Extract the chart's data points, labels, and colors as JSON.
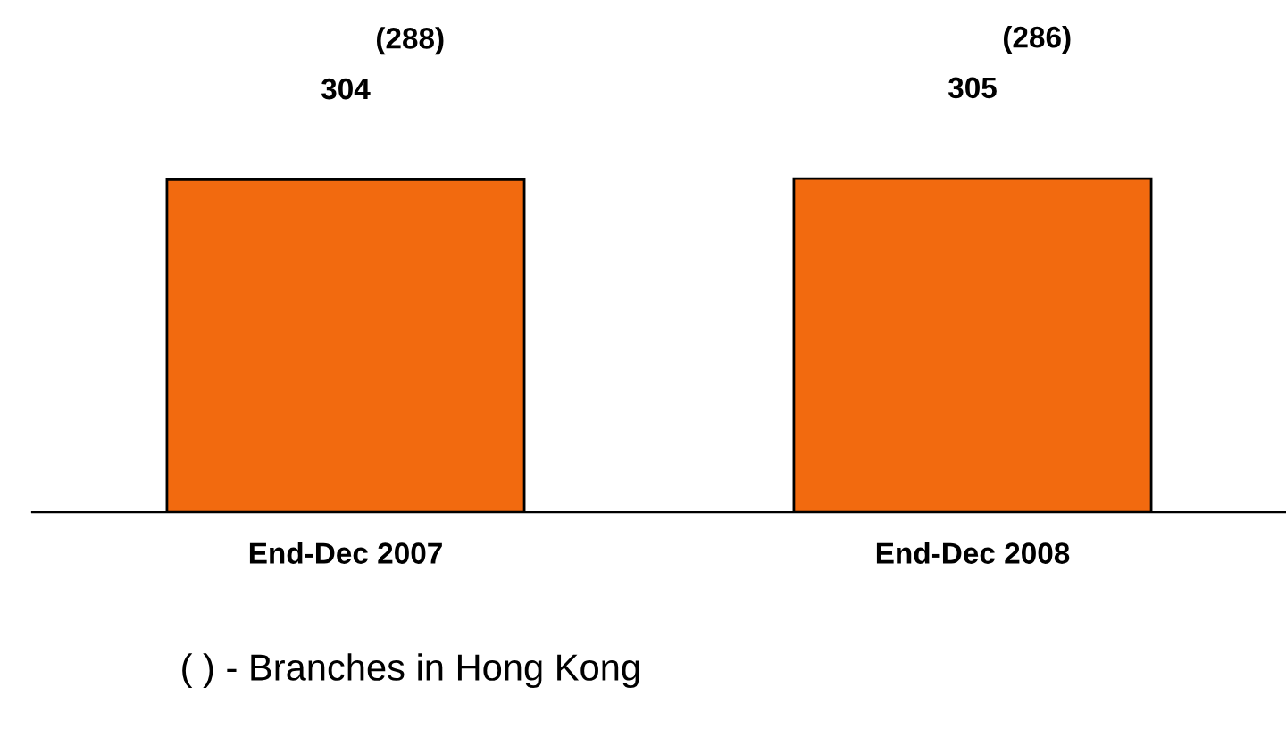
{
  "chart_data": {
    "type": "bar",
    "categories": [
      "End-Dec 2007",
      "End-Dec 2008"
    ],
    "values": [
      304,
      305
    ],
    "color": "#f26a0f",
    "data_labels": true,
    "grid": false,
    "legend": false,
    "annotations": [
      "(288)",
      "(286)",
      "( ) - Branches in Hong Kong"
    ]
  }
}
